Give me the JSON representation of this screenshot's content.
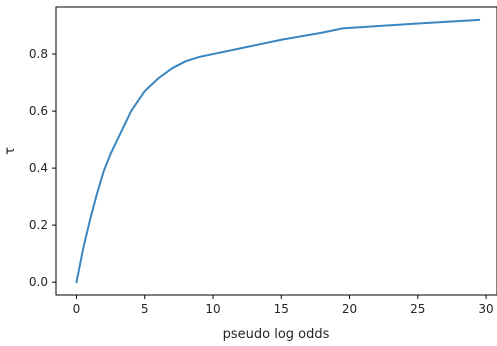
{
  "chart_data": {
    "type": "line",
    "title": "",
    "xlabel": "pseudo log odds",
    "ylabel": "τ",
    "xlim": [
      -1.5,
      30.8
    ],
    "ylim": [
      -0.045,
      0.965
    ],
    "x_ticks": [
      0,
      5,
      10,
      15,
      20,
      25,
      30
    ],
    "y_ticks": [
      0.0,
      0.2,
      0.4,
      0.6,
      0.8
    ],
    "x_tick_labels": [
      "0",
      "5",
      "10",
      "15",
      "20",
      "25",
      "30"
    ],
    "y_tick_labels": [
      "0.0",
      "0.2",
      "0.4",
      "0.6",
      "0.8"
    ],
    "grid": false,
    "legend": "none",
    "line_color": "#3a86c0",
    "series": [
      {
        "x": [
          0,
          0.5,
          1,
          1.5,
          2,
          2.5,
          3,
          3.5,
          4,
          5,
          6,
          7,
          8,
          9,
          10,
          12,
          15,
          18,
          19.5,
          22,
          25,
          27.5,
          29.5
        ],
        "values": [
          0.0,
          0.12,
          0.22,
          0.31,
          0.39,
          0.45,
          0.5,
          0.55,
          0.6,
          0.67,
          0.715,
          0.75,
          0.775,
          0.79,
          0.8,
          0.82,
          0.85,
          0.875,
          0.89,
          0.898,
          0.907,
          0.914,
          0.92
        ]
      }
    ]
  }
}
